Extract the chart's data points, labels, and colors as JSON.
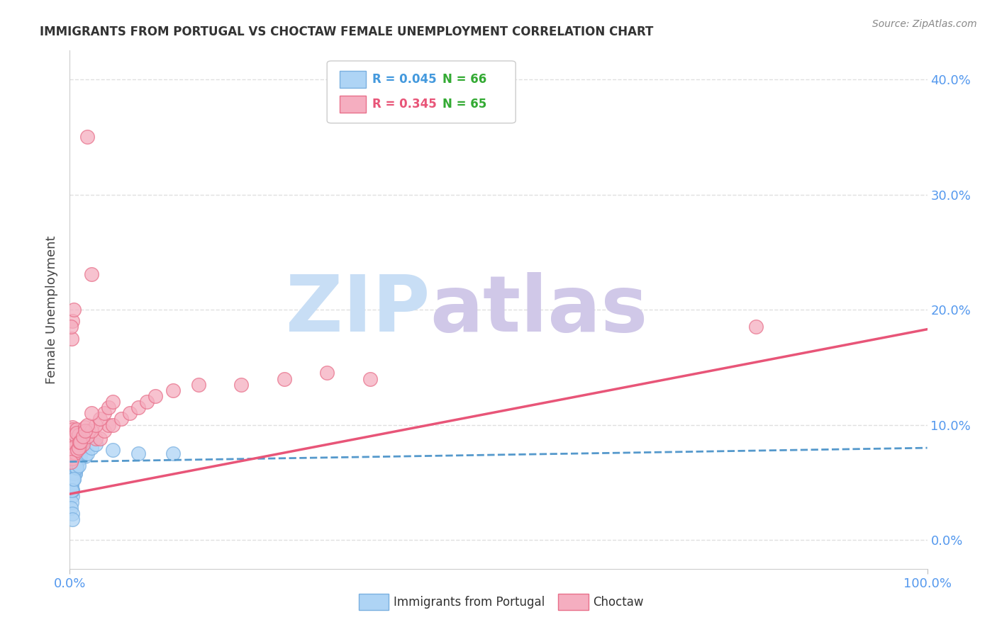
{
  "title": "IMMIGRANTS FROM PORTUGAL VS CHOCTAW FEMALE UNEMPLOYMENT CORRELATION CHART",
  "source": "Source: ZipAtlas.com",
  "ylabel": "Female Unemployment",
  "xlim": [
    0,
    1.0
  ],
  "ylim": [
    -0.025,
    0.425
  ],
  "yticks": [
    0.0,
    0.1,
    0.2,
    0.3,
    0.4
  ],
  "ytick_labels": [
    "0.0%",
    "10.0%",
    "20.0%",
    "30.0%",
    "40.0%"
  ],
  "xtick_positions": [
    0.0,
    1.0
  ],
  "xtick_labels": [
    "0.0%",
    "100.0%"
  ],
  "series1_label": "Immigrants from Portugal",
  "series1_color": "#aed4f5",
  "series1_edge_color": "#7ab0e0",
  "series1_R": "0.045",
  "series1_N": "66",
  "series2_label": "Choctaw",
  "series2_color": "#f5aec0",
  "series2_edge_color": "#e8708a",
  "series2_R": "0.345",
  "series2_N": "65",
  "trend1_color": "#5599cc",
  "trend2_color": "#e85578",
  "watermark_ZIP_color": "#c8def5",
  "watermark_atlas_color": "#d0c8e8",
  "background_color": "#ffffff",
  "legend_R_color1": "#4499dd",
  "legend_R_color2": "#e85578",
  "legend_N_color": "#33aa33",
  "grid_color": "#e0e0e0",
  "tick_label_color": "#5599ee",
  "series1_x": [
    0.002,
    0.003,
    0.001,
    0.004,
    0.002,
    0.005,
    0.001,
    0.003,
    0.006,
    0.002,
    0.001,
    0.004,
    0.003,
    0.002,
    0.005,
    0.007,
    0.003,
    0.001,
    0.002,
    0.004,
    0.006,
    0.003,
    0.008,
    0.002,
    0.005,
    0.004,
    0.001,
    0.003,
    0.009,
    0.002,
    0.006,
    0.004,
    0.003,
    0.01,
    0.002,
    0.007,
    0.005,
    0.003,
    0.001,
    0.008,
    0.012,
    0.004,
    0.006,
    0.003,
    0.015,
    0.002,
    0.009,
    0.005,
    0.001,
    0.011,
    0.018,
    0.007,
    0.003,
    0.013,
    0.004,
    0.02,
    0.008,
    0.002,
    0.025,
    0.005,
    0.03,
    0.01,
    0.05,
    0.003,
    0.08,
    0.12
  ],
  "series1_y": [
    0.075,
    0.085,
    0.065,
    0.09,
    0.07,
    0.06,
    0.08,
    0.055,
    0.068,
    0.078,
    0.058,
    0.072,
    0.082,
    0.048,
    0.063,
    0.073,
    0.053,
    0.043,
    0.088,
    0.068,
    0.058,
    0.078,
    0.063,
    0.093,
    0.073,
    0.053,
    0.043,
    0.083,
    0.068,
    0.048,
    0.058,
    0.078,
    0.038,
    0.073,
    0.063,
    0.083,
    0.053,
    0.043,
    0.093,
    0.068,
    0.073,
    0.053,
    0.063,
    0.043,
    0.083,
    0.033,
    0.068,
    0.058,
    0.028,
    0.078,
    0.073,
    0.063,
    0.023,
    0.083,
    0.053,
    0.075,
    0.063,
    0.043,
    0.08,
    0.053,
    0.083,
    0.065,
    0.078,
    0.018,
    0.075,
    0.075
  ],
  "series2_x": [
    0.003,
    0.002,
    0.005,
    0.001,
    0.004,
    0.006,
    0.002,
    0.008,
    0.003,
    0.001,
    0.005,
    0.007,
    0.003,
    0.01,
    0.004,
    0.002,
    0.012,
    0.006,
    0.003,
    0.015,
    0.008,
    0.004,
    0.02,
    0.01,
    0.005,
    0.025,
    0.012,
    0.006,
    0.03,
    0.015,
    0.008,
    0.035,
    0.018,
    0.009,
    0.04,
    0.02,
    0.01,
    0.045,
    0.022,
    0.011,
    0.05,
    0.025,
    0.012,
    0.06,
    0.03,
    0.015,
    0.07,
    0.035,
    0.018,
    0.08,
    0.04,
    0.02,
    0.09,
    0.045,
    0.1,
    0.05,
    0.025,
    0.12,
    0.15,
    0.2,
    0.25,
    0.3,
    0.35,
    0.8,
    0.001
  ],
  "series2_y": [
    0.19,
    0.175,
    0.2,
    0.185,
    0.09,
    0.085,
    0.095,
    0.088,
    0.098,
    0.08,
    0.092,
    0.082,
    0.096,
    0.086,
    0.076,
    0.091,
    0.081,
    0.091,
    0.071,
    0.086,
    0.096,
    0.076,
    0.35,
    0.091,
    0.081,
    0.231,
    0.086,
    0.076,
    0.088,
    0.083,
    0.093,
    0.088,
    0.098,
    0.078,
    0.095,
    0.09,
    0.08,
    0.1,
    0.095,
    0.085,
    0.1,
    0.095,
    0.085,
    0.105,
    0.1,
    0.09,
    0.11,
    0.105,
    0.095,
    0.115,
    0.11,
    0.1,
    0.12,
    0.115,
    0.125,
    0.12,
    0.11,
    0.13,
    0.135,
    0.135,
    0.14,
    0.145,
    0.14,
    0.185,
    0.068
  ],
  "trend1_x0": 0.0,
  "trend1_x1": 1.0,
  "trend1_y0": 0.068,
  "trend1_y1": 0.08,
  "trend2_x0": 0.0,
  "trend2_x1": 1.0,
  "trend2_y0": 0.04,
  "trend2_y1": 0.183
}
